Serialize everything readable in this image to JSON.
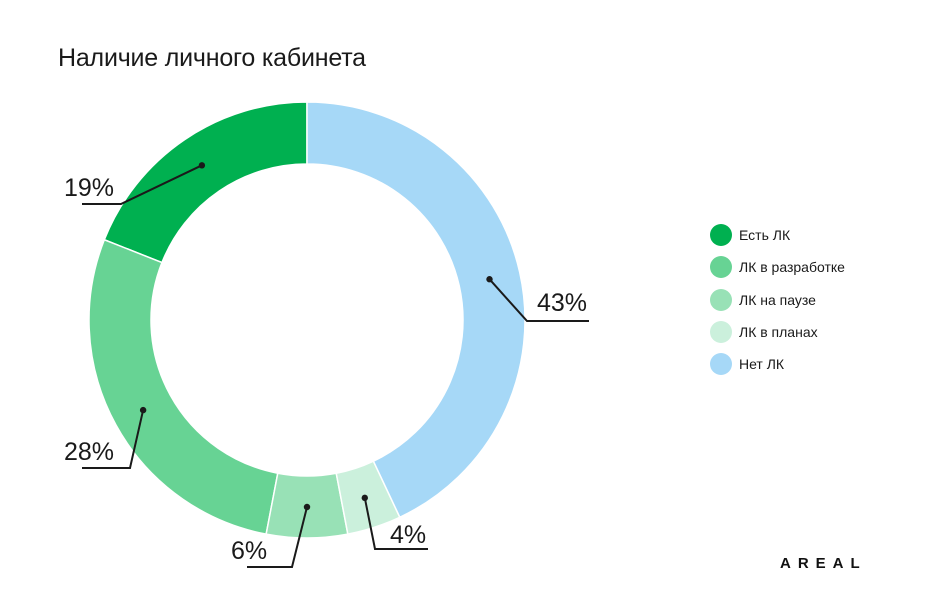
{
  "chart_data": {
    "type": "pie",
    "title": "Наличие личного кабинета",
    "categories": [
      "Есть ЛК",
      "ЛК в разработке",
      "ЛК на паузе",
      "ЛК в планах",
      "Нет ЛК"
    ],
    "values": [
      19,
      28,
      6,
      4,
      43
    ],
    "value_labels": [
      "19%",
      "28%",
      "6%",
      "4%",
      "43%"
    ],
    "colors": [
      "#00b050",
      "#67d394",
      "#98e1b6",
      "#cbf0dc",
      "#a6d8f7"
    ],
    "legend_placement": "right",
    "donut": true
  },
  "brand": "AREAL"
}
